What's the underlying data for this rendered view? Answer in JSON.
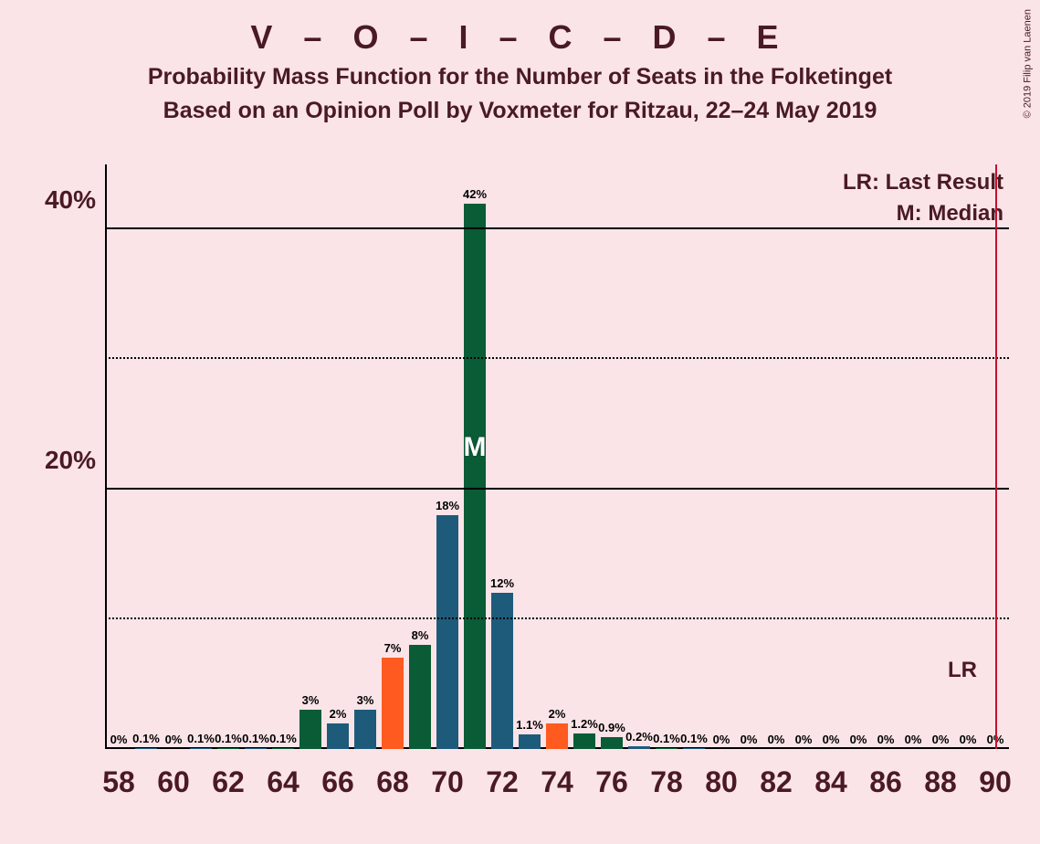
{
  "title": "V – O – I – C – D – E",
  "title_fontsize": 36,
  "subtitle": "Probability Mass Function for the Number of Seats in the Folketinget",
  "subtitle2": "Based on an Opinion Poll by Voxmeter for Ritzau, 22–24 May 2019",
  "subtitle_fontsize": 25,
  "copyright": "© 2019 Filip van Laenen",
  "legend_lr": "LR: Last Result",
  "legend_m": "M: Median",
  "legend_fontsize": 24,
  "lr_label": "LR",
  "m_label": "M",
  "background_color": "#fae4e8",
  "text_color": "#4a1a24",
  "lr_line_color": "#c4122e",
  "chart": {
    "type": "bar",
    "ylim": [
      0,
      45
    ],
    "y_axis": {
      "ticks": [
        {
          "v": 20,
          "label": "20%",
          "style": "solid"
        },
        {
          "v": 40,
          "label": "40%",
          "style": "solid"
        },
        {
          "v": 10,
          "label": "",
          "style": "dotted"
        },
        {
          "v": 30,
          "label": "",
          "style": "dotted"
        }
      ],
      "label_fontsize": 28
    },
    "x_start": 58,
    "x_end": 90,
    "x_tick_step": 2,
    "x_label_fontsize": 32,
    "bar_label_fontsize": 13,
    "bar_width_ratio": 0.78,
    "lr_x": 90,
    "median_x": 71,
    "m_fontsize": 30,
    "colors": {
      "green": "#0a5c36",
      "blue": "#1e5b7a",
      "orange": "#ff5a1f"
    },
    "bars": [
      {
        "x": 58,
        "v": 0,
        "label": "0%",
        "color": "green"
      },
      {
        "x": 59,
        "v": 0.1,
        "label": "0.1%",
        "color": "blue"
      },
      {
        "x": 60,
        "v": 0,
        "label": "0%",
        "color": "green"
      },
      {
        "x": 61,
        "v": 0.1,
        "label": "0.1%",
        "color": "blue"
      },
      {
        "x": 62,
        "v": 0.1,
        "label": "0.1%",
        "color": "green"
      },
      {
        "x": 63,
        "v": 0.1,
        "label": "0.1%",
        "color": "blue"
      },
      {
        "x": 64,
        "v": 0.1,
        "label": "0.1%",
        "color": "green"
      },
      {
        "x": 65,
        "v": 3,
        "label": "3%",
        "color": "green"
      },
      {
        "x": 66,
        "v": 2,
        "label": "2%",
        "color": "blue"
      },
      {
        "x": 67,
        "v": 3,
        "label": "3%",
        "color": "blue"
      },
      {
        "x": 68,
        "v": 7,
        "label": "7%",
        "color": "orange"
      },
      {
        "x": 69,
        "v": 8,
        "label": "8%",
        "color": "green"
      },
      {
        "x": 70,
        "v": 18,
        "label": "18%",
        "color": "blue"
      },
      {
        "x": 71,
        "v": 42,
        "label": "42%",
        "color": "green"
      },
      {
        "x": 72,
        "v": 12,
        "label": "12%",
        "color": "blue"
      },
      {
        "x": 73,
        "v": 1.1,
        "label": "1.1%",
        "color": "blue"
      },
      {
        "x": 74,
        "v": 2,
        "label": "2%",
        "color": "orange"
      },
      {
        "x": 75,
        "v": 1.2,
        "label": "1.2%",
        "color": "green"
      },
      {
        "x": 76,
        "v": 0.9,
        "label": "0.9%",
        "color": "green"
      },
      {
        "x": 77,
        "v": 0.2,
        "label": "0.2%",
        "color": "blue"
      },
      {
        "x": 78,
        "v": 0.1,
        "label": "0.1%",
        "color": "green"
      },
      {
        "x": 79,
        "v": 0.1,
        "label": "0.1%",
        "color": "blue"
      },
      {
        "x": 80,
        "v": 0,
        "label": "0%",
        "color": "green"
      },
      {
        "x": 81,
        "v": 0,
        "label": "0%",
        "color": "blue"
      },
      {
        "x": 82,
        "v": 0,
        "label": "0%",
        "color": "green"
      },
      {
        "x": 83,
        "v": 0,
        "label": "0%",
        "color": "blue"
      },
      {
        "x": 84,
        "v": 0,
        "label": "0%",
        "color": "green"
      },
      {
        "x": 85,
        "v": 0,
        "label": "0%",
        "color": "blue"
      },
      {
        "x": 86,
        "v": 0,
        "label": "0%",
        "color": "green"
      },
      {
        "x": 87,
        "v": 0,
        "label": "0%",
        "color": "blue"
      },
      {
        "x": 88,
        "v": 0,
        "label": "0%",
        "color": "green"
      },
      {
        "x": 89,
        "v": 0,
        "label": "0%",
        "color": "blue"
      },
      {
        "x": 90,
        "v": 0,
        "label": "0%",
        "color": "green"
      }
    ]
  }
}
